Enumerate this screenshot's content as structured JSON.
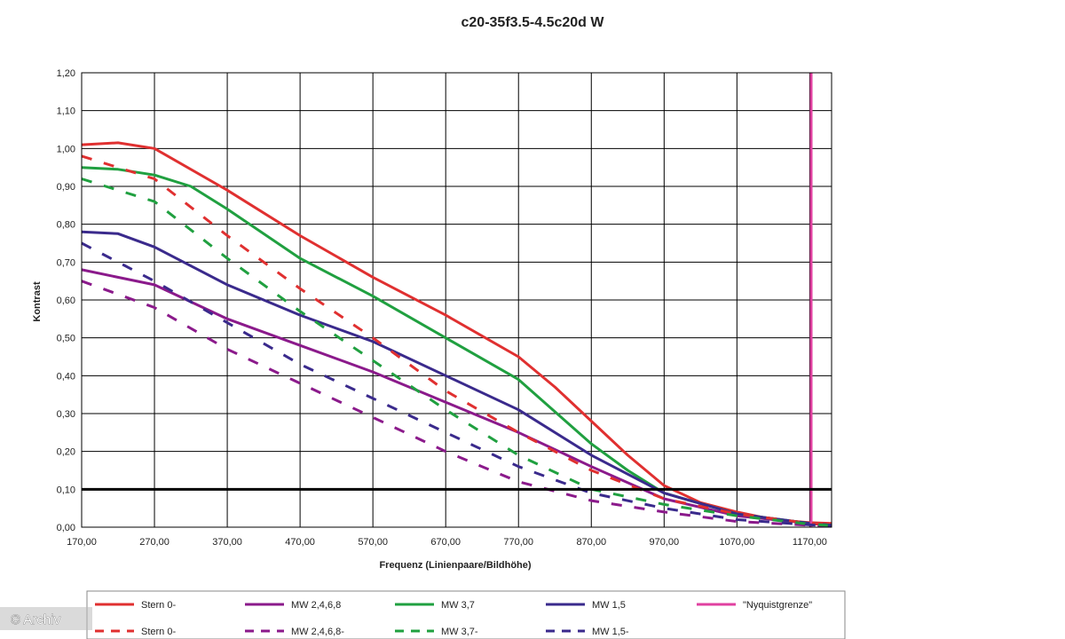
{
  "chart_data": {
    "type": "line",
    "title": "c20-35f3.5-4.5c20d W",
    "xlabel": "Frequenz (Linienpaare/Bildhöhe)",
    "ylabel": "Kontrast",
    "xlim": [
      170,
      1200
    ],
    "ylim": [
      0,
      1.2
    ],
    "x_ticks": [
      "170,00",
      "270,00",
      "370,00",
      "470,00",
      "570,00",
      "670,00",
      "770,00",
      "870,00",
      "970,00",
      "1070,00",
      "1170,00"
    ],
    "y_ticks": [
      "0,00",
      "0,10",
      "0,20",
      "0,30",
      "0,40",
      "0,50",
      "0,60",
      "0,70",
      "0,80",
      "0,90",
      "1,00",
      "1,10",
      "1,20"
    ],
    "grid": true,
    "legend_position": "bottom",
    "reference_lines": [
      {
        "orientation": "horizontal",
        "value": 0.1,
        "color": "#000000"
      }
    ],
    "series": [
      {
        "name": "Stern 0-",
        "color": "#e03030",
        "dash": false,
        "points": [
          [
            170,
            1.01
          ],
          [
            220,
            1.015
          ],
          [
            270,
            1.0
          ],
          [
            370,
            0.89
          ],
          [
            470,
            0.77
          ],
          [
            570,
            0.66
          ],
          [
            670,
            0.56
          ],
          [
            770,
            0.45
          ],
          [
            820,
            0.37
          ],
          [
            870,
            0.28
          ],
          [
            920,
            0.19
          ],
          [
            970,
            0.11
          ],
          [
            1020,
            0.065
          ],
          [
            1070,
            0.04
          ],
          [
            1120,
            0.02
          ],
          [
            1170,
            0.012
          ],
          [
            1200,
            0.01
          ]
        ]
      },
      {
        "name": "MW 2,4,6,8",
        "color": "#8b1a8b",
        "dash": false,
        "points": [
          [
            170,
            0.68
          ],
          [
            270,
            0.64
          ],
          [
            370,
            0.55
          ],
          [
            470,
            0.48
          ],
          [
            570,
            0.41
          ],
          [
            670,
            0.33
          ],
          [
            770,
            0.25
          ],
          [
            870,
            0.16
          ],
          [
            970,
            0.075
          ],
          [
            1070,
            0.03
          ],
          [
            1170,
            0.01
          ],
          [
            1200,
            0.005
          ]
        ]
      },
      {
        "name": "MW 3,7",
        "color": "#20a040",
        "dash": false,
        "points": [
          [
            170,
            0.95
          ],
          [
            220,
            0.945
          ],
          [
            270,
            0.93
          ],
          [
            320,
            0.9
          ],
          [
            370,
            0.84
          ],
          [
            470,
            0.71
          ],
          [
            570,
            0.61
          ],
          [
            670,
            0.5
          ],
          [
            770,
            0.39
          ],
          [
            870,
            0.22
          ],
          [
            920,
            0.15
          ],
          [
            970,
            0.09
          ],
          [
            1070,
            0.035
          ],
          [
            1170,
            0.01
          ],
          [
            1200,
            0.005
          ]
        ]
      },
      {
        "name": "MW 1,5",
        "color": "#3a2a8c",
        "dash": false,
        "points": [
          [
            170,
            0.78
          ],
          [
            220,
            0.775
          ],
          [
            270,
            0.74
          ],
          [
            370,
            0.64
          ],
          [
            470,
            0.56
          ],
          [
            570,
            0.49
          ],
          [
            670,
            0.4
          ],
          [
            770,
            0.31
          ],
          [
            870,
            0.19
          ],
          [
            970,
            0.09
          ],
          [
            1070,
            0.035
          ],
          [
            1170,
            0.01
          ],
          [
            1200,
            0.005
          ]
        ]
      },
      {
        "name": "\"Nyquistgrenze\"",
        "color": "#e040a0",
        "dash": false,
        "points": [
          [
            1172,
            0
          ],
          [
            1172,
            1.2
          ]
        ]
      },
      {
        "name": "Stern 0-",
        "color": "#e03030",
        "dash": true,
        "points": [
          [
            170,
            0.98
          ],
          [
            270,
            0.92
          ],
          [
            370,
            0.77
          ],
          [
            470,
            0.63
          ],
          [
            570,
            0.5
          ],
          [
            670,
            0.36
          ],
          [
            770,
            0.25
          ],
          [
            870,
            0.15
          ],
          [
            970,
            0.075
          ],
          [
            1070,
            0.035
          ],
          [
            1170,
            0.01
          ],
          [
            1200,
            0.005
          ]
        ]
      },
      {
        "name": "MW 2,4,6,8-",
        "color": "#8b1a8b",
        "dash": true,
        "points": [
          [
            170,
            0.65
          ],
          [
            270,
            0.58
          ],
          [
            370,
            0.47
          ],
          [
            470,
            0.38
          ],
          [
            570,
            0.29
          ],
          [
            670,
            0.2
          ],
          [
            770,
            0.12
          ],
          [
            870,
            0.07
          ],
          [
            970,
            0.04
          ],
          [
            1070,
            0.015
          ],
          [
            1170,
            0.005
          ],
          [
            1200,
            0.002
          ]
        ]
      },
      {
        "name": "MW 3,7-",
        "color": "#20a040",
        "dash": true,
        "points": [
          [
            170,
            0.92
          ],
          [
            270,
            0.86
          ],
          [
            370,
            0.71
          ],
          [
            470,
            0.57
          ],
          [
            570,
            0.44
          ],
          [
            670,
            0.31
          ],
          [
            770,
            0.19
          ],
          [
            870,
            0.1
          ],
          [
            970,
            0.06
          ],
          [
            1070,
            0.03
          ],
          [
            1170,
            0.008
          ],
          [
            1200,
            0.004
          ]
        ]
      },
      {
        "name": "MW 1,5-",
        "color": "#3a2a8c",
        "dash": true,
        "points": [
          [
            170,
            0.75
          ],
          [
            270,
            0.65
          ],
          [
            370,
            0.54
          ],
          [
            470,
            0.43
          ],
          [
            570,
            0.34
          ],
          [
            670,
            0.25
          ],
          [
            770,
            0.16
          ],
          [
            870,
            0.09
          ],
          [
            970,
            0.05
          ],
          [
            1070,
            0.02
          ],
          [
            1170,
            0.006
          ],
          [
            1200,
            0.003
          ]
        ]
      }
    ]
  },
  "watermark": "© Archiv"
}
